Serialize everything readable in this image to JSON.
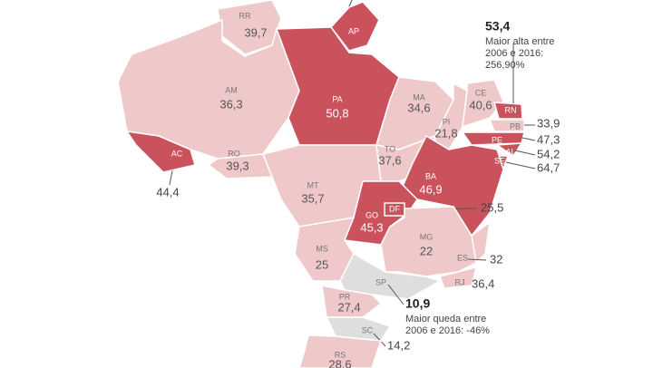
{
  "states": [
    {
      "abbr": "RR",
      "value": "39,7",
      "color": "#efc9c9"
    },
    {
      "abbr": "AP",
      "value": null,
      "color": "#c9525c"
    },
    {
      "abbr": "AM",
      "value": "36,3",
      "color": "#efc9c9"
    },
    {
      "abbr": "PA",
      "value": "50,8",
      "color": "#c9525c"
    },
    {
      "abbr": "AC",
      "value": "44,4",
      "color": "#c9525c"
    },
    {
      "abbr": "RO",
      "value": "39,3",
      "color": "#efc9c9"
    },
    {
      "abbr": "MT",
      "value": "35,7",
      "color": "#efc9c9"
    },
    {
      "abbr": "MA",
      "value": "34,6",
      "color": "#efc9c9"
    },
    {
      "abbr": "PI",
      "value": "21,8",
      "color": "#efc9c9"
    },
    {
      "abbr": "CE",
      "value": "40,6",
      "color": "#efc9c9"
    },
    {
      "abbr": "RN",
      "value": "53,4",
      "color": "#c9525c",
      "note": [
        "Maior alta entre",
        "2006 e 2016:",
        "256,90%"
      ]
    },
    {
      "abbr": "PB",
      "value": "33,9",
      "color": "#efc9c9"
    },
    {
      "abbr": "PE",
      "value": "47,3",
      "color": "#c9525c"
    },
    {
      "abbr": "AL",
      "value": "54,2",
      "color": "#c9525c"
    },
    {
      "abbr": "SE",
      "value": "64,7",
      "color": "#c9525c"
    },
    {
      "abbr": "TO",
      "value": "37,6",
      "color": "#efc9c9"
    },
    {
      "abbr": "BA",
      "value": "46,9",
      "color": "#c9525c"
    },
    {
      "abbr": "GO",
      "value": "45,3",
      "color": "#c9525c"
    },
    {
      "abbr": "DF",
      "value": "25,5",
      "color": "#c9525c"
    },
    {
      "abbr": "MG",
      "value": "22",
      "color": "#efc9c9"
    },
    {
      "abbr": "ES",
      "value": "32",
      "color": "#efc9c9"
    },
    {
      "abbr": "RJ",
      "value": "36,4",
      "color": "#efc9c9"
    },
    {
      "abbr": "MS",
      "value": "25",
      "color": "#efc9c9"
    },
    {
      "abbr": "SP",
      "value": "10,9",
      "color": "#dedede",
      "note": [
        "Maior queda entre",
        "2006 e 2016: -46%"
      ]
    },
    {
      "abbr": "PR",
      "value": "27,4",
      "color": "#efc9c9"
    },
    {
      "abbr": "SC",
      "value": "14,2",
      "color": "#dedede"
    },
    {
      "abbr": "RS",
      "value": "28,6",
      "color": "#efc9c9"
    }
  ]
}
